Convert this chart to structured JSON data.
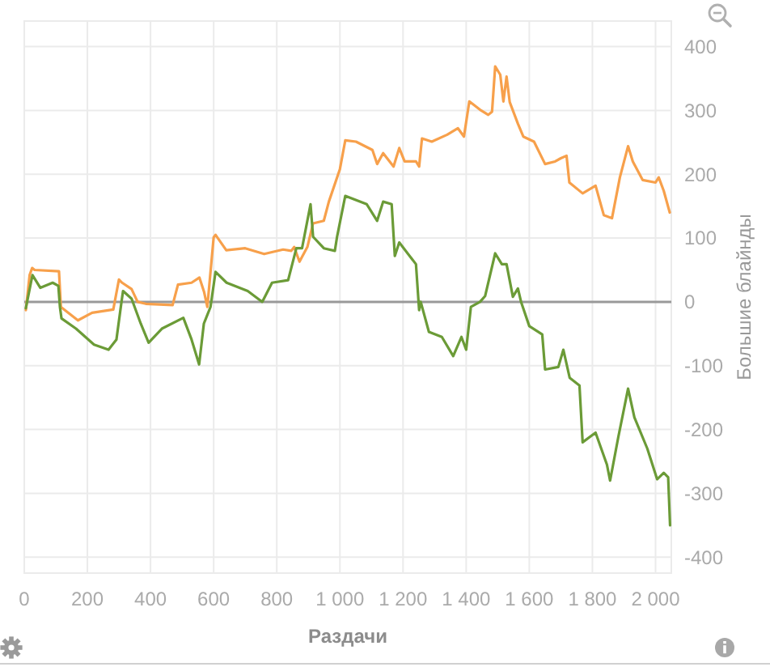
{
  "chart_data": {
    "type": "line",
    "xlabel": "Раздачи",
    "ylabel": "Большие блайнды",
    "xlim": [
      0,
      2050
    ],
    "ylim": [
      -425,
      440
    ],
    "xticks": [
      0,
      200,
      400,
      600,
      800,
      {
        "value": 1000,
        "label": "1 000"
      },
      {
        "value": 1200,
        "label": "1 200"
      },
      {
        "value": 1400,
        "label": "1 400"
      },
      {
        "value": 1600,
        "label": "1 600"
      },
      {
        "value": 1800,
        "label": "1 800"
      },
      {
        "value": 2000,
        "label": "2 000"
      }
    ],
    "yticks": [
      -400,
      -300,
      -200,
      -100,
      0,
      100,
      200,
      300,
      400
    ],
    "grid": true,
    "ref_lines": [
      {
        "axis": "y",
        "value": 0,
        "color": "#999999"
      }
    ],
    "series": [
      {
        "color": "#f7a04b",
        "x": [
          5,
          17,
          25,
          33,
          110,
          116,
          170,
          215,
          282,
          300,
          310,
          340,
          359,
          385,
          470,
          487,
          530,
          555,
          570,
          580,
          600,
          606,
          640,
          700,
          760,
          820,
          846,
          855,
          872,
          897,
          915,
          949,
          965,
          1000,
          1017,
          1051,
          1103,
          1118,
          1137,
          1170,
          1188,
          1205,
          1241,
          1251,
          1260,
          1291,
          1340,
          1374,
          1393,
          1410,
          1444,
          1470,
          1482,
          1492,
          1508,
          1518,
          1528,
          1538,
          1564,
          1581,
          1615,
          1650,
          1682,
          1700,
          1718,
          1727,
          1769,
          1810,
          1836,
          1862,
          1887,
          1913,
          1928,
          1959,
          2000,
          2010,
          2026,
          2045
        ],
        "values": [
          -13,
          42,
          53,
          50,
          48,
          -8,
          -29,
          -17,
          -12,
          35,
          30,
          20,
          0,
          -3,
          -5,
          27,
          30,
          38,
          15,
          -8,
          101,
          105,
          81,
          84,
          75,
          82,
          80,
          86,
          63,
          86,
          123,
          127,
          157,
          208,
          253,
          251,
          238,
          216,
          233,
          212,
          241,
          220,
          220,
          212,
          256,
          251,
          262,
          272,
          259,
          314,
          301,
          293,
          298,
          369,
          356,
          314,
          353,
          313,
          279,
          259,
          251,
          216,
          220,
          225,
          229,
          187,
          170,
          182,
          136,
          131,
          195,
          244,
          220,
          191,
          187,
          195,
          174,
          140
        ]
      },
      {
        "color": "#6b9b37",
        "x": [
          5,
          26,
          51,
          90,
          108,
          113,
          118,
          164,
          221,
          267,
          292,
          308,
          313,
          340,
          369,
          394,
          436,
          504,
          530,
          554,
          569,
          590,
          606,
          641,
          708,
          754,
          785,
          836,
          862,
          880,
          907,
          915,
          949,
          984,
          991,
          1017,
          1085,
          1118,
          1137,
          1164,
          1174,
          1188,
          1241,
          1251,
          1256,
          1282,
          1323,
          1359,
          1385,
          1400,
          1415,
          1444,
          1460,
          1492,
          1513,
          1528,
          1548,
          1564,
          1574,
          1600,
          1641,
          1650,
          1692,
          1708,
          1728,
          1759,
          1769,
          1810,
          1846,
          1856,
          1882,
          1913,
          1933,
          1974,
          2005,
          2026,
          2040,
          2046
        ],
        "values": [
          -10,
          42,
          22,
          30,
          25,
          -8,
          -26,
          -42,
          -67,
          -75,
          -59,
          0,
          17,
          5,
          -34,
          -64,
          -42,
          -25,
          -59,
          -98,
          -34,
          -8,
          47,
          30,
          17,
          0,
          30,
          34,
          84,
          84,
          153,
          102,
          84,
          80,
          102,
          166,
          153,
          127,
          157,
          153,
          72,
          93,
          59,
          -13,
          0,
          -47,
          -55,
          -85,
          -55,
          -75,
          -8,
          0,
          9,
          76,
          59,
          59,
          8,
          21,
          0,
          -38,
          -51,
          -106,
          -102,
          -75,
          -119,
          -131,
          -220,
          -205,
          -255,
          -280,
          -212,
          -136,
          -181,
          -230,
          -278,
          -268,
          -275,
          -350
        ]
      }
    ]
  }
}
